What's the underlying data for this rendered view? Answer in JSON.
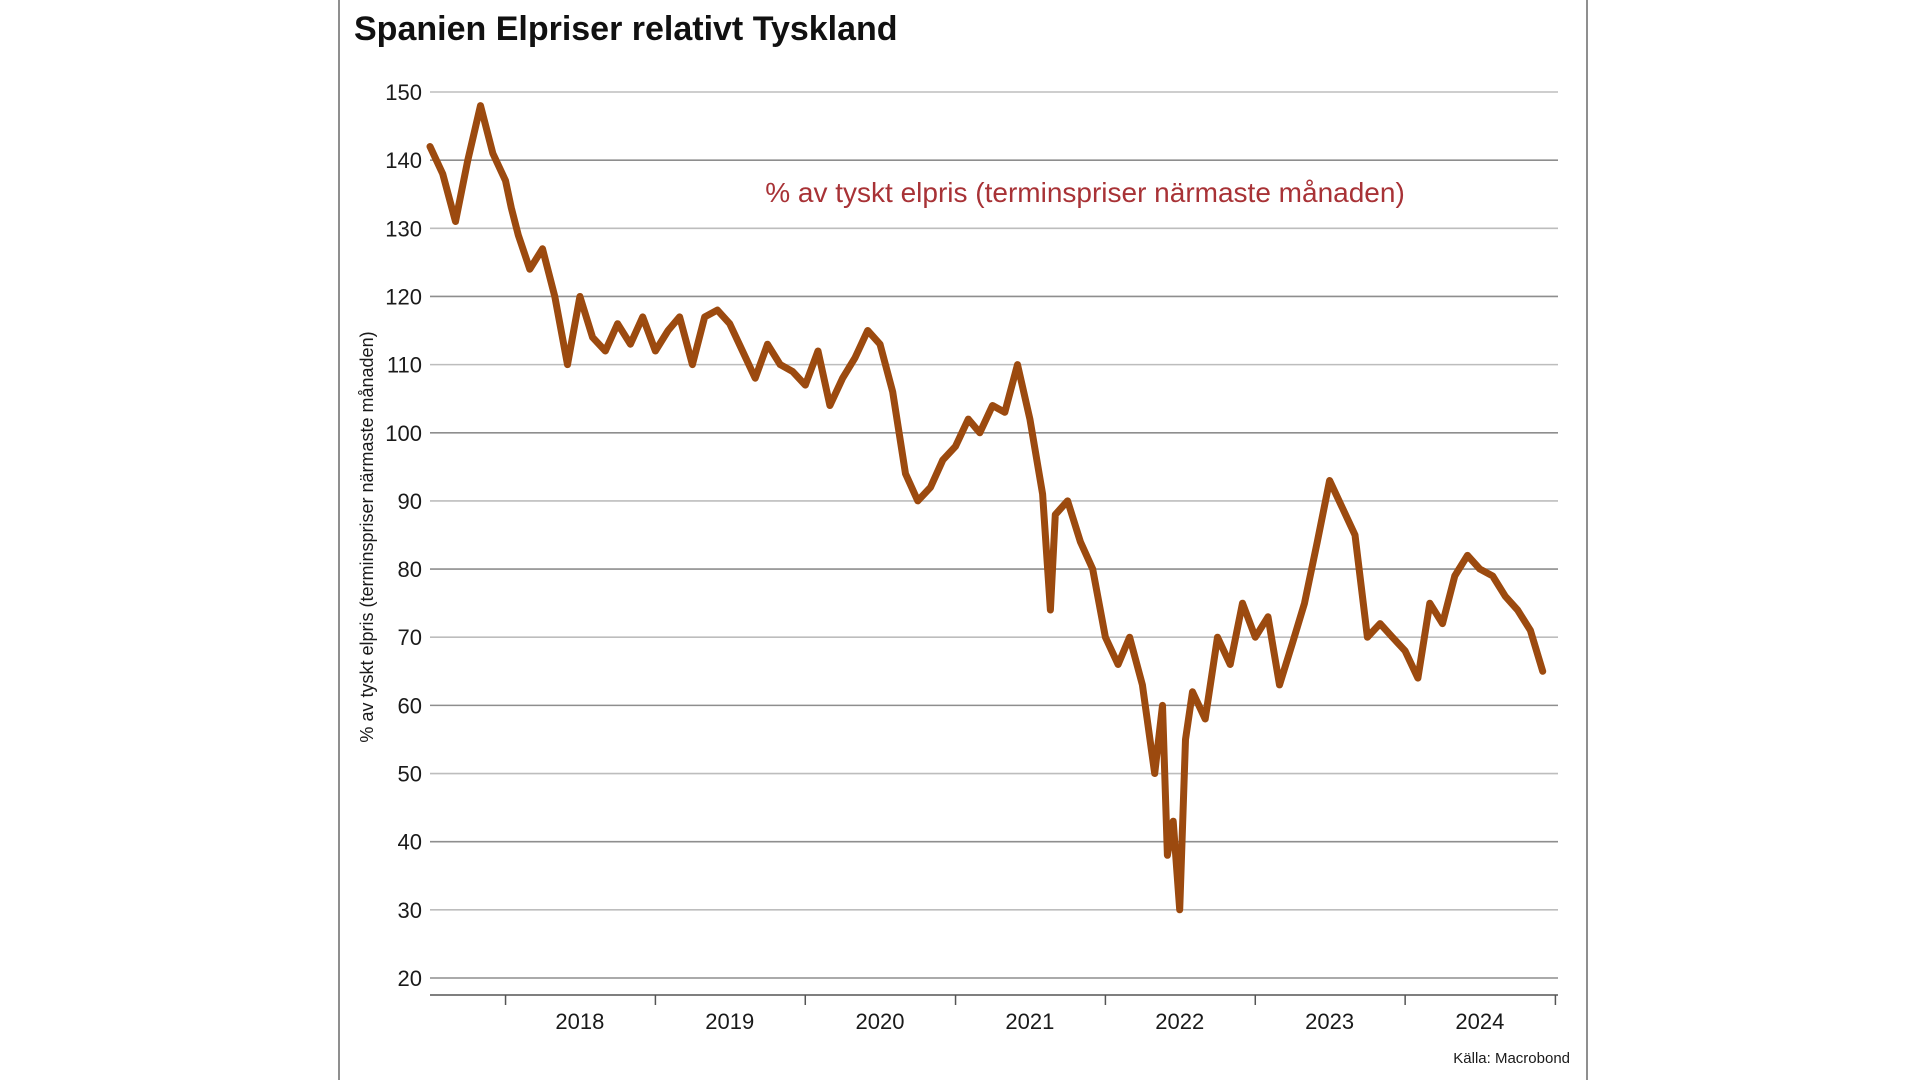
{
  "chart_data": {
    "type": "line",
    "title": "Spanien Elpriser relativt Tyskland",
    "ylabel": "% av tyskt elpris (terminspriser närmaste månaden)",
    "xlabel": "",
    "annotation": "% av tyskt elpris (terminspriser närmaste månaden)",
    "source": "Källa: Macrobond",
    "ylim": [
      20,
      150
    ],
    "yticks": [
      20,
      30,
      40,
      50,
      60,
      70,
      80,
      90,
      100,
      110,
      120,
      130,
      140,
      150
    ],
    "xlim": [
      "2017-07-01",
      "2024-12-31"
    ],
    "xtick_labels": [
      "2018",
      "2019",
      "2020",
      "2021",
      "2022",
      "2023",
      "2024"
    ],
    "grid": "horizontal",
    "colors": {
      "line": "#9c4a0f",
      "annotation": "#a83236",
      "grid": "#bdbdbd",
      "axis": "#555555"
    },
    "series": [
      {
        "x": [
          "2017-07-01",
          "2017-08-01",
          "2017-09-01",
          "2017-10-01",
          "2017-11-01",
          "2017-12-01",
          "2018-01-01",
          "2018-01-15",
          "2018-02-01",
          "2018-03-01",
          "2018-04-01",
          "2018-05-01",
          "2018-06-01",
          "2018-07-01",
          "2018-08-01",
          "2018-09-01",
          "2018-10-01",
          "2018-11-01",
          "2018-12-01",
          "2019-01-01",
          "2019-02-01",
          "2019-03-01",
          "2019-04-01",
          "2019-05-01",
          "2019-06-01",
          "2019-07-01",
          "2019-08-01",
          "2019-09-01",
          "2019-10-01",
          "2019-11-01",
          "2019-12-01",
          "2020-01-01",
          "2020-02-01",
          "2020-03-01",
          "2020-04-01",
          "2020-05-01",
          "2020-06-01",
          "2020-07-01",
          "2020-08-01",
          "2020-09-01",
          "2020-10-01",
          "2020-11-01",
          "2020-12-01",
          "2021-01-01",
          "2021-02-01",
          "2021-03-01",
          "2021-04-01",
          "2021-05-01",
          "2021-06-01",
          "2021-07-01",
          "2021-08-01",
          "2021-08-20",
          "2021-09-01",
          "2021-10-01",
          "2021-11-01",
          "2021-12-01",
          "2022-01-01",
          "2022-02-01",
          "2022-03-01",
          "2022-04-01",
          "2022-05-01",
          "2022-05-20",
          "2022-06-01",
          "2022-06-15",
          "2022-07-01",
          "2022-07-15",
          "2022-08-01",
          "2022-09-01",
          "2022-10-01",
          "2022-11-01",
          "2022-12-01",
          "2023-01-01",
          "2023-02-01",
          "2023-03-01",
          "2023-04-01",
          "2023-05-01",
          "2023-06-01",
          "2023-07-01",
          "2023-08-01",
          "2023-09-01",
          "2023-10-01",
          "2023-11-01",
          "2023-12-01",
          "2024-01-01",
          "2024-02-01",
          "2024-03-01",
          "2024-04-01",
          "2024-05-01",
          "2024-06-01",
          "2024-07-01",
          "2024-08-01",
          "2024-09-01",
          "2024-10-01",
          "2024-11-01",
          "2024-12-01"
        ],
        "y": [
          142,
          138,
          131,
          140,
          148,
          141,
          137,
          133,
          129,
          124,
          127,
          120,
          110,
          120,
          114,
          112,
          116,
          113,
          117,
          112,
          115,
          117,
          110,
          117,
          118,
          116,
          112,
          108,
          113,
          110,
          109,
          107,
          112,
          104,
          108,
          111,
          115,
          113,
          106,
          94,
          90,
          92,
          96,
          98,
          102,
          100,
          104,
          103,
          110,
          102,
          91,
          74,
          88,
          90,
          84,
          80,
          70,
          66,
          70,
          63,
          50,
          60,
          38,
          43,
          30,
          55,
          62,
          58,
          70,
          66,
          75,
          70,
          73,
          63,
          69,
          75,
          84,
          93,
          89,
          85,
          70,
          72,
          70,
          68,
          64,
          75,
          72,
          79,
          82,
          80,
          79,
          76,
          74,
          71,
          65
        ]
      }
    ]
  }
}
